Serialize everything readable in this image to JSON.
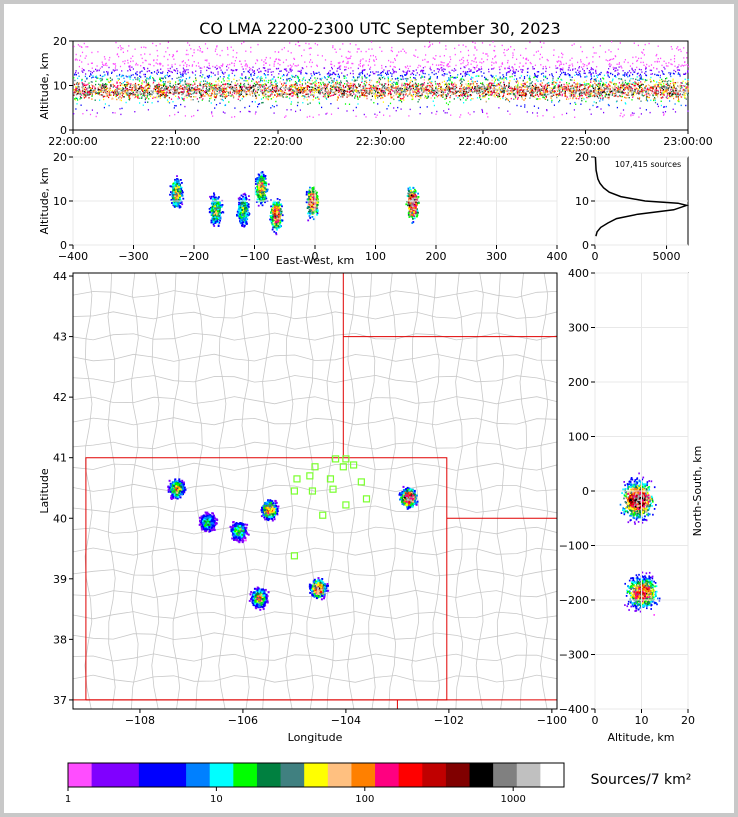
{
  "chart_data": [
    {
      "type": "heatmap",
      "title": "CO LMA 2200-2300 UTC September 30, 2023",
      "ylabel": "Altitude, km",
      "xlabel": "",
      "xtick_labels": [
        "22:00:00",
        "22:10:00",
        "22:20:00",
        "22:30:00",
        "22:40:00",
        "22:50:00",
        "23:00:00"
      ],
      "ylim": [
        0,
        20
      ],
      "yticks": [
        0,
        10,
        20
      ]
    },
    {
      "type": "heatmap",
      "xlabel": "East-West, km",
      "ylabel": "Altitude, km",
      "xlim": [
        -400,
        400
      ],
      "xticks": [
        -400,
        -300,
        -200,
        -100,
        0,
        100,
        200,
        300,
        400
      ],
      "ylim": [
        0,
        20
      ],
      "yticks": [
        0,
        10,
        20
      ],
      "clusters": [
        {
          "x": -230,
          "alt": 12,
          "level": 0.6
        },
        {
          "x": -165,
          "alt": 8,
          "level": 0.55
        },
        {
          "x": -120,
          "alt": 8,
          "level": 0.5
        },
        {
          "x": -90,
          "alt": 13,
          "level": 0.65
        },
        {
          "x": -65,
          "alt": 7,
          "level": 0.75
        },
        {
          "x": -5,
          "alt": 10,
          "level": 0.8
        },
        {
          "x": 160,
          "alt": 9.5,
          "level": 1.0
        }
      ]
    },
    {
      "type": "line",
      "annotation": "107,415 sources",
      "xlim": [
        0,
        6500
      ],
      "xticks": [
        0,
        5000
      ],
      "ylim": [
        0,
        20
      ],
      "yticks": [
        0,
        10,
        20
      ],
      "x": [
        60,
        150,
        400,
        900,
        1500,
        3000,
        5500,
        6400,
        5800,
        3500,
        1800,
        1000,
        600,
        350,
        200,
        80,
        30
      ],
      "y": [
        2,
        3,
        4,
        5,
        6,
        7,
        8,
        9,
        9.5,
        10,
        11,
        12,
        13,
        14,
        15,
        17,
        20
      ]
    },
    {
      "type": "heatmap",
      "xlabel": "Longitude",
      "ylabel": "Latitude",
      "xlim": [
        -109.3,
        -99.9
      ],
      "ylim": [
        36.85,
        44.05
      ],
      "xticks": [
        -108,
        -106,
        -104,
        -102,
        -100
      ],
      "xtick_labels": [
        "−108",
        "−106",
        "−104",
        "−102",
        "−100"
      ],
      "yticks": [
        37,
        38,
        39,
        40,
        41,
        42,
        43,
        44
      ],
      "clusters": [
        {
          "lon": -107.3,
          "lat": 40.5,
          "level": 0.65
        },
        {
          "lon": -106.7,
          "lat": 39.95,
          "level": 0.45
        },
        {
          "lon": -106.1,
          "lat": 39.8,
          "level": 0.5
        },
        {
          "lon": -105.5,
          "lat": 40.15,
          "level": 0.75
        },
        {
          "lon": -105.7,
          "lat": 38.7,
          "level": 0.65
        },
        {
          "lon": -104.55,
          "lat": 38.85,
          "level": 0.85
        },
        {
          "lon": -102.8,
          "lat": 40.35,
          "level": 1.0
        }
      ],
      "stations": [
        [
          -104.2,
          40.98
        ],
        [
          -104.0,
          40.98
        ],
        [
          -104.6,
          40.85
        ],
        [
          -104.05,
          40.85
        ],
        [
          -103.85,
          40.88
        ],
        [
          -104.7,
          40.7
        ],
        [
          -104.3,
          40.65
        ],
        [
          -104.95,
          40.65
        ],
        [
          -103.7,
          40.6
        ],
        [
          -104.65,
          40.45
        ],
        [
          -104.25,
          40.48
        ],
        [
          -105.0,
          40.45
        ],
        [
          -103.6,
          40.32
        ],
        [
          -104.0,
          40.22
        ],
        [
          -104.45,
          40.05
        ],
        [
          -105.0,
          39.38
        ]
      ]
    },
    {
      "type": "heatmap",
      "xlabel": "Altitude, km",
      "ylabel": "North-South, km",
      "xlim": [
        0,
        20
      ],
      "xticks": [
        0,
        10,
        20
      ],
      "ylim": [
        -400,
        400
      ],
      "yticks": [
        -400,
        -300,
        -200,
        -100,
        0,
        100,
        200,
        300,
        400
      ],
      "clusters": [
        {
          "alt": 9,
          "ns": -15,
          "level": 1.0
        },
        {
          "alt": 10,
          "ns": -185,
          "level": 0.8
        }
      ]
    },
    {
      "type": "colorbar",
      "label": "Sources/7 km²",
      "scale": "log",
      "tick_labels": [
        "1",
        "10",
        "100",
        "1000"
      ],
      "colors": [
        "#ff4dff",
        "#8000ff",
        "#8000ff",
        "#0000ff",
        "#0000ff",
        "#0080ff",
        "#00ffff",
        "#00ff00",
        "#008040",
        "#408080",
        "#ffff00",
        "#ffc080",
        "#ff8000",
        "#ff0080",
        "#ff0000",
        "#c00000",
        "#800000",
        "#000000",
        "#808080",
        "#c0c0c0",
        "#ffffff"
      ]
    }
  ]
}
